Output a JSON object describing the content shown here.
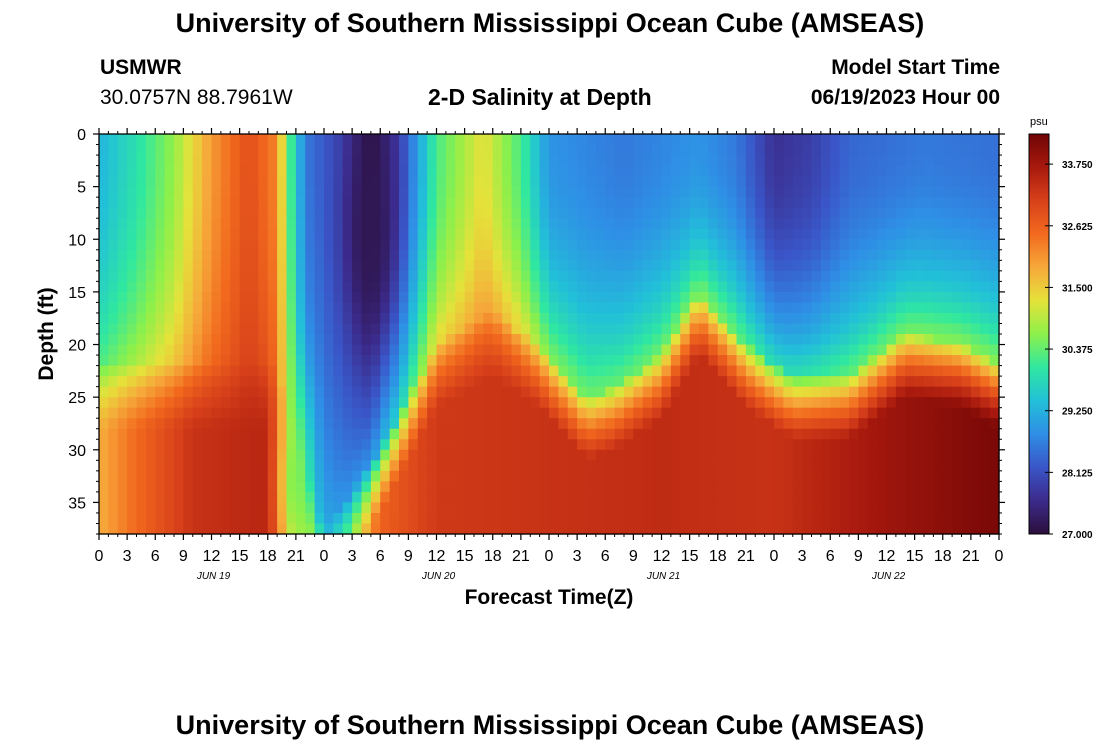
{
  "header": {
    "title": "University of Southern Mississippi Ocean Cube (AMSEAS)",
    "station": "USMWR",
    "coordinates": "30.0757N  88.7961W",
    "plot_title": "2-D Salinity at Depth",
    "model_start_label": "Model Start Time",
    "model_start_value": "06/19/2023 Hour 00"
  },
  "footer": {
    "title": "University of Southern Mississippi Ocean Cube (AMSEAS)"
  },
  "chart_data": {
    "type": "heatmap",
    "title": "2-D Salinity at Depth",
    "xlabel": "Forecast Time(Z)",
    "ylabel": "Depth (ft)",
    "x_range_hours": [
      0,
      96
    ],
    "y_range_ft": [
      0,
      38
    ],
    "x_tick_labels": [
      "0",
      "3",
      "6",
      "9",
      "12",
      "15",
      "18",
      "21",
      "0",
      "3",
      "6",
      "9",
      "12",
      "15",
      "18",
      "21",
      "0",
      "3",
      "6",
      "9",
      "12",
      "15",
      "18",
      "21",
      "0",
      "3",
      "6",
      "9",
      "12",
      "15",
      "18",
      "21",
      "0"
    ],
    "y_ticks": [
      0,
      5,
      10,
      15,
      20,
      25,
      30,
      35
    ],
    "y_tick_labels": [
      "0",
      "5",
      "10",
      "15",
      "20",
      "25",
      "30",
      "35"
    ],
    "day_labels": [
      {
        "hour": 12,
        "label": "JUN 19"
      },
      {
        "hour": 36,
        "label": "JUN 20"
      },
      {
        "hour": 60,
        "label": "JUN 21"
      },
      {
        "hour": 84,
        "label": "JUN 22"
      }
    ],
    "colorbar": {
      "unit": "psu",
      "min": 27.0,
      "max": 34.3,
      "tick_values": [
        27.0,
        28.125,
        29.25,
        30.375,
        31.5,
        32.625,
        33.75
      ],
      "tick_labels": [
        "27.000",
        "28.125",
        "29.250",
        "30.375",
        "31.500",
        "32.625",
        "33.750"
      ],
      "colors": [
        "#2b0f3b",
        "#3b2a8a",
        "#3a56c8",
        "#2f8ee6",
        "#22c0d8",
        "#30e8a0",
        "#8df04a",
        "#e5e23a",
        "#f6a83a",
        "#f26a1e",
        "#d8411a",
        "#a8190e",
        "#700505"
      ]
    },
    "interface_depth_ft": [
      {
        "hour": 0,
        "depth": 22
      },
      {
        "hour": 6,
        "depth": 22
      },
      {
        "hour": 12,
        "depth": 22
      },
      {
        "hour": 19,
        "depth": 22
      },
      {
        "hour": 24,
        "depth": 38
      },
      {
        "hour": 30,
        "depth": 30
      },
      {
        "hour": 36,
        "depth": 20
      },
      {
        "hour": 42,
        "depth": 17
      },
      {
        "hour": 47,
        "depth": 20
      },
      {
        "hour": 52,
        "depth": 25
      },
      {
        "hour": 55,
        "depth": 24
      },
      {
        "hour": 60,
        "depth": 21
      },
      {
        "hour": 64,
        "depth": 15
      },
      {
        "hour": 69,
        "depth": 20
      },
      {
        "hour": 74,
        "depth": 23
      },
      {
        "hour": 80,
        "depth": 23
      },
      {
        "hour": 86,
        "depth": 19
      },
      {
        "hour": 92,
        "depth": 20
      },
      {
        "hour": 96,
        "depth": 22
      }
    ],
    "surface_salinity_psu": [
      {
        "hour": 0,
        "value": 29.3
      },
      {
        "hour": 4,
        "value": 29.9
      },
      {
        "hour": 8,
        "value": 30.7
      },
      {
        "hour": 12,
        "value": 32.0
      },
      {
        "hour": 16,
        "value": 32.9
      },
      {
        "hour": 19,
        "value": 32.2
      },
      {
        "hour": 20,
        "value": 30.6
      },
      {
        "hour": 22,
        "value": 28.6
      },
      {
        "hour": 26,
        "value": 27.9
      },
      {
        "hour": 29,
        "value": 27.0
      },
      {
        "hour": 32,
        "value": 27.9
      },
      {
        "hour": 36,
        "value": 30.2
      },
      {
        "hour": 41,
        "value": 31.3
      },
      {
        "hour": 45,
        "value": 30.2
      },
      {
        "hour": 48,
        "value": 28.9
      },
      {
        "hour": 56,
        "value": 28.6
      },
      {
        "hour": 64,
        "value": 28.9
      },
      {
        "hour": 68,
        "value": 28.6
      },
      {
        "hour": 72,
        "value": 27.7
      },
      {
        "hour": 76,
        "value": 27.9
      },
      {
        "hour": 80,
        "value": 28.4
      },
      {
        "hour": 88,
        "value": 28.6
      },
      {
        "hour": 96,
        "value": 28.5
      }
    ],
    "deep_salinity_psu": [
      {
        "hour": 0,
        "value": 31.8
      },
      {
        "hour": 4,
        "value": 32.5
      },
      {
        "hour": 10,
        "value": 33.3
      },
      {
        "hour": 18,
        "value": 33.5
      },
      {
        "hour": 22,
        "value": 31.0
      },
      {
        "hour": 26,
        "value": 30.6
      },
      {
        "hour": 30,
        "value": 32.6
      },
      {
        "hour": 36,
        "value": 33.2
      },
      {
        "hour": 48,
        "value": 33.3
      },
      {
        "hour": 60,
        "value": 33.4
      },
      {
        "hour": 72,
        "value": 33.3
      },
      {
        "hour": 84,
        "value": 33.8
      },
      {
        "hour": 96,
        "value": 34.2
      }
    ],
    "low_salinity_tongues": [
      {
        "hour": 21,
        "depth": 33,
        "width_h": 1.6,
        "value": 30.5
      },
      {
        "hour": 29,
        "depth": 10,
        "width_h": 2.5,
        "value": 27.2
      }
    ]
  }
}
